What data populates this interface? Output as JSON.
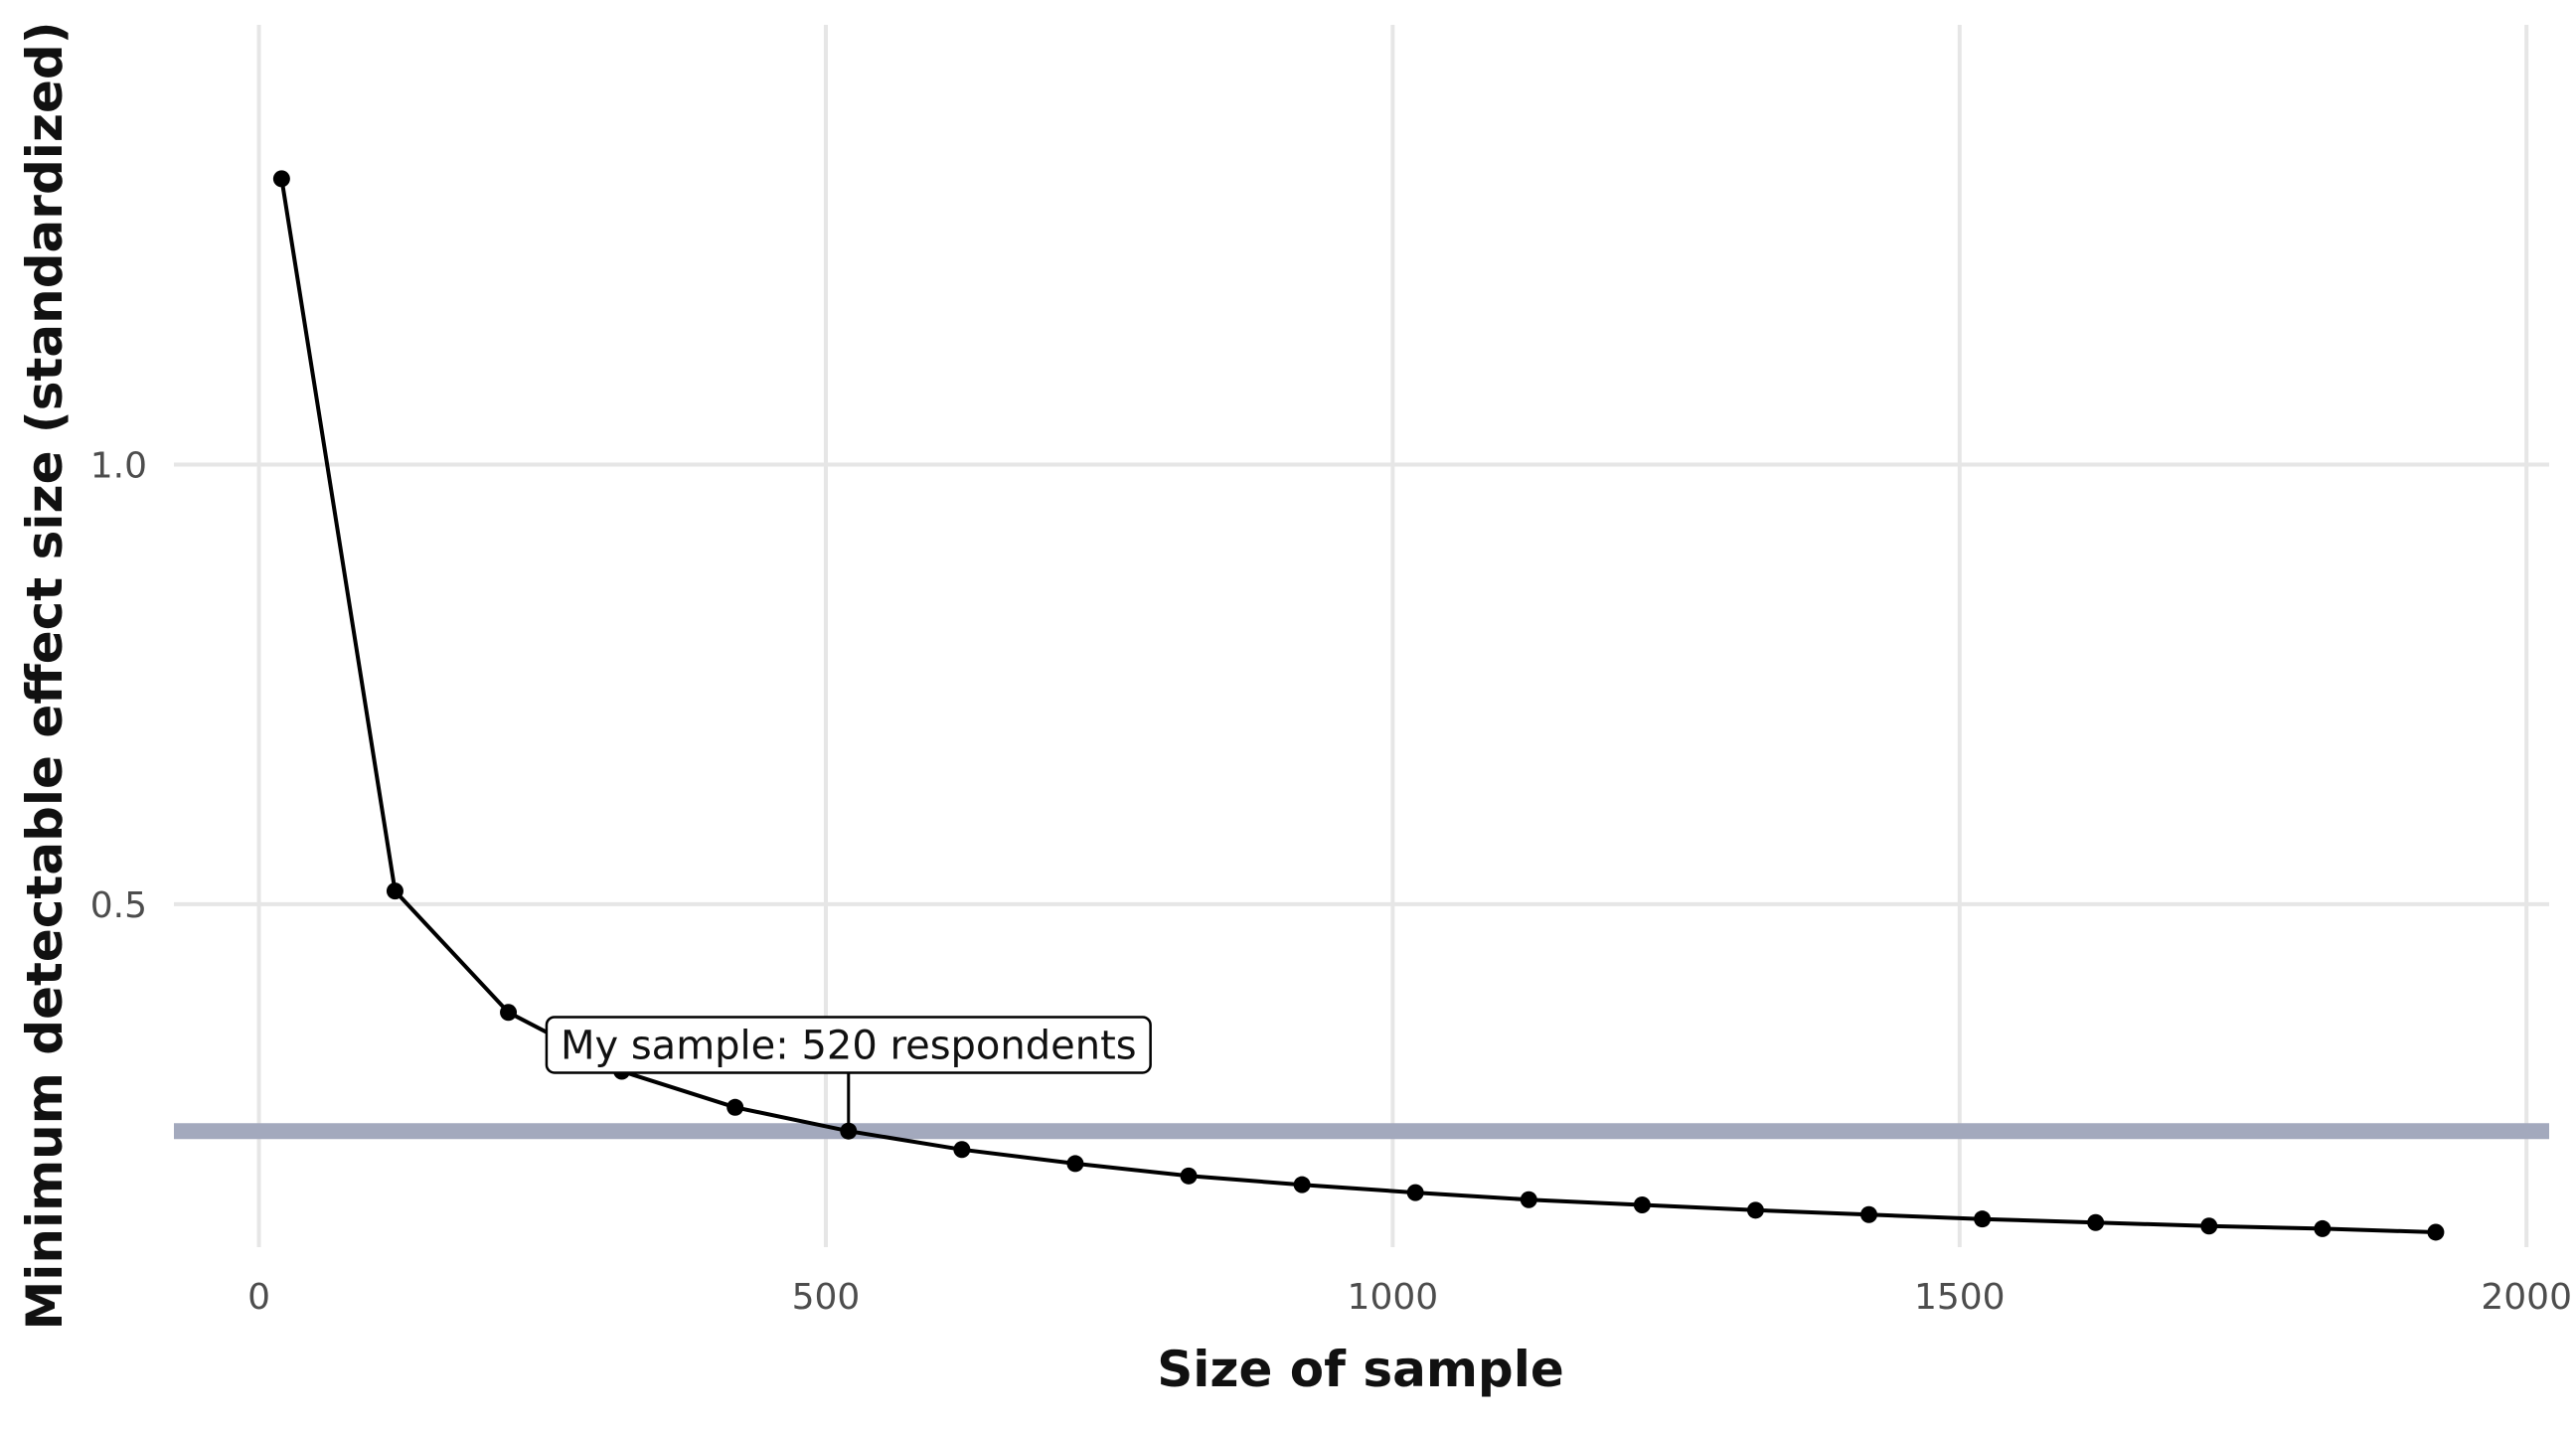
{
  "chart_data": {
    "type": "line",
    "title": "",
    "xlabel": "Size of sample",
    "ylabel": "Minimum detectable effect size (standardized)",
    "xlim": [
      -75,
      2020
    ],
    "ylim": [
      0.11,
      1.5
    ],
    "x_ticks": [
      0,
      500,
      1000,
      1500,
      2000
    ],
    "x_tick_labels": [
      "0",
      "500",
      "1000",
      "1500",
      "2000"
    ],
    "y_ticks": [
      0.5,
      1.0
    ],
    "y_tick_labels": [
      "0.5",
      "1.0"
    ],
    "grid": true,
    "legend": "none",
    "series": [
      {
        "x": [
          20,
          120,
          220,
          320,
          420,
          520,
          620,
          720,
          820,
          920,
          1020,
          1120,
          1220,
          1320,
          1420,
          1520,
          1620,
          1720,
          1820,
          1920
        ],
        "y": [
          1.325,
          0.515,
          0.377,
          0.31,
          0.269,
          0.242,
          0.221,
          0.205,
          0.191,
          0.181,
          0.172,
          0.164,
          0.158,
          0.152,
          0.147,
          0.142,
          0.138,
          0.134,
          0.131,
          0.127
        ]
      }
    ],
    "reference_line": {
      "y": 0.242,
      "color": "#a3a9bd"
    },
    "annotation": {
      "text": "My sample: 520 respondents",
      "x": 520,
      "y": 0.242,
      "label_y": 0.34
    },
    "colors": {
      "line": "#000000",
      "points": "#000000",
      "grid": "#e6e6e6",
      "reference": "#a3a9bd"
    }
  }
}
